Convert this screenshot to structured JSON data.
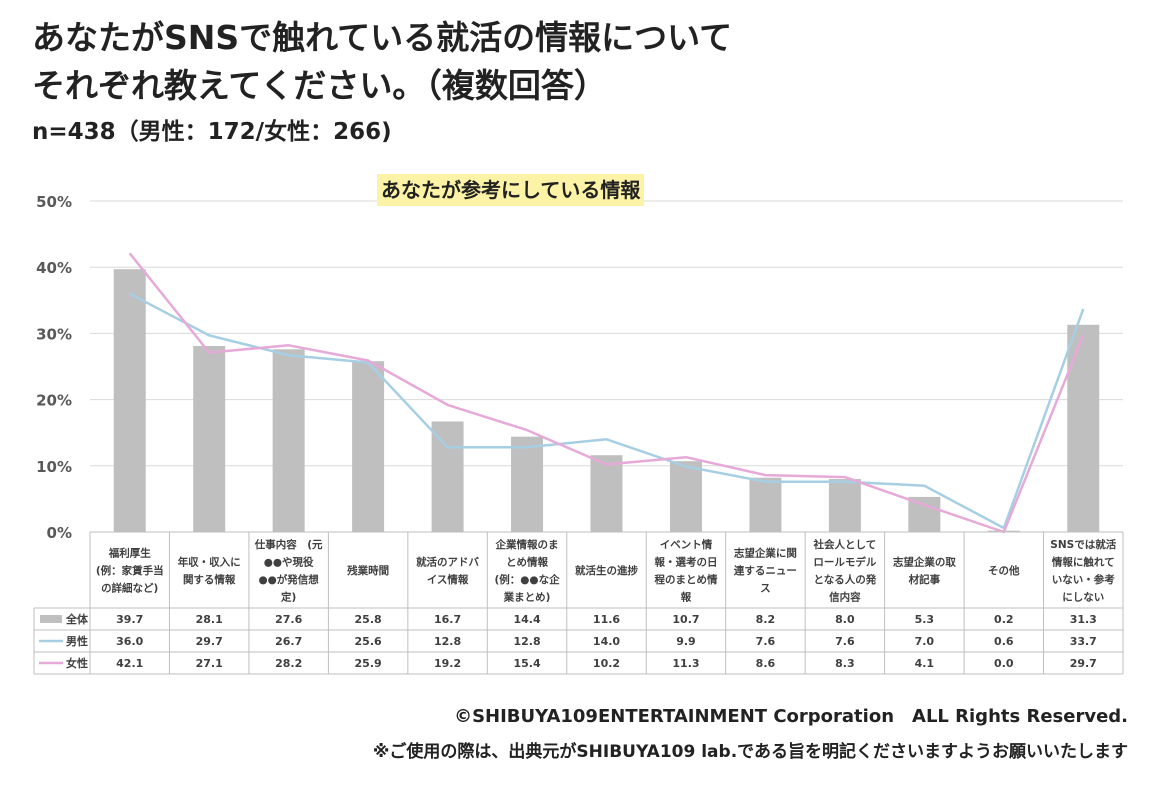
{
  "title_line1": "あなたがSNSで触れている就活の情報について",
  "title_line2": "それぞれ教えてください。（複数回答）",
  "sample": "n=438（男性：172/女性：266)",
  "chart_title_bg": "#fdf3a6",
  "footer_copyright": "©SHIBUYA109ENTERTAINMENT Corporation　ALL Rights Reserved.",
  "footer_note": "※ご使用の際は、出典元がSHIBUYA109 lab.である旨を明記くださいますようお願いいたします",
  "chart_data": {
    "type": "bar",
    "title": "あなたが参考にしている情報",
    "ylim": [
      0,
      50
    ],
    "yticks": [
      "0%",
      "10%",
      "20%",
      "30%",
      "40%",
      "50%"
    ],
    "grid": true,
    "categories": [
      [
        "福利厚生",
        "(例：家賃手当",
        "の詳細など)"
      ],
      [
        "年収・収入に",
        "関する情報"
      ],
      [
        "仕事内容　(元",
        "●●や現役",
        "●●が発信想",
        "定)"
      ],
      [
        "残業時間"
      ],
      [
        "就活のアドバ",
        "イス情報"
      ],
      [
        "企業情報のま",
        "とめ情報",
        "(例：●●な企",
        "業まとめ)"
      ],
      [
        "就活生の進捗"
      ],
      [
        "イベント情",
        "報・選考の日",
        "程のまとめ情",
        "報"
      ],
      [
        "志望企業に関",
        "連するニュー",
        "ス"
      ],
      [
        "社会人として",
        "ロールモデル",
        "となる人の発",
        "信内容"
      ],
      [
        "志望企業の取",
        "材記事"
      ],
      [
        "その他"
      ],
      [
        "SNSでは就活",
        "情報に触れて",
        "いない・参考",
        "にしない"
      ]
    ],
    "series": [
      {
        "name": "全体",
        "kind": "bar",
        "color": "#bfbfbf",
        "values": [
          39.7,
          28.1,
          27.6,
          25.8,
          16.7,
          14.4,
          11.6,
          10.7,
          8.2,
          8.0,
          5.3,
          0.2,
          31.3
        ],
        "labels": [
          "39.7",
          "28.1",
          "27.6",
          "25.8",
          "16.7",
          "14.4",
          "11.6",
          "10.7",
          "8.2",
          "8.0",
          "5.3",
          "0.2",
          "31.3"
        ]
      },
      {
        "name": "男性",
        "kind": "line",
        "color": "#a7cfe4",
        "values": [
          36.0,
          29.7,
          26.7,
          25.6,
          12.8,
          12.8,
          14.0,
          9.9,
          7.6,
          7.6,
          7.0,
          0.6,
          33.7
        ],
        "labels": [
          "36.0",
          "29.7",
          "26.7",
          "25.6",
          "12.8",
          "12.8",
          "14.0",
          "9.9",
          "7.6",
          "7.6",
          "7.0",
          "0.6",
          "33.7"
        ]
      },
      {
        "name": "女性",
        "kind": "line",
        "color": "#e6a9d8",
        "values": [
          42.1,
          27.1,
          28.2,
          25.9,
          19.2,
          15.4,
          10.2,
          11.3,
          8.6,
          8.3,
          4.1,
          0.0,
          29.7
        ],
        "labels": [
          "42.1",
          "27.1",
          "28.2",
          "25.9",
          "19.2",
          "15.4",
          "10.2",
          "11.3",
          "8.6",
          "8.3",
          "4.1",
          "0.0",
          "29.7"
        ]
      }
    ]
  }
}
